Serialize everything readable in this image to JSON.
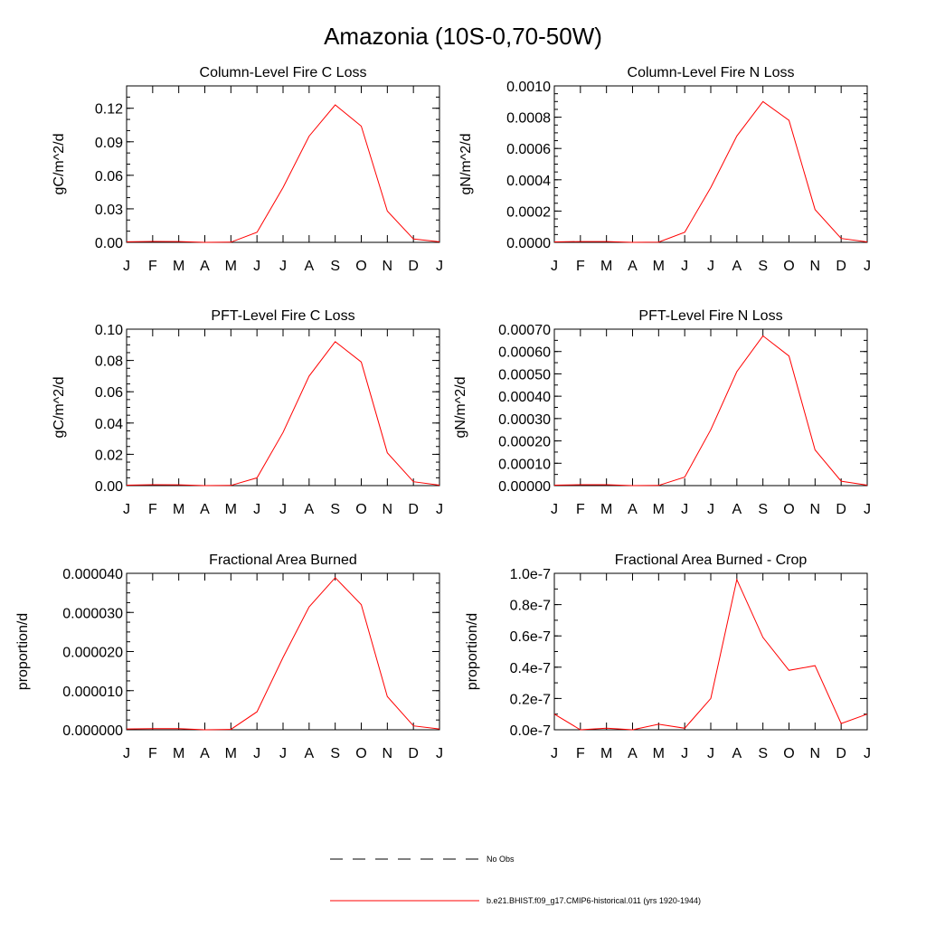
{
  "title": "Amazonia (10S-0,70-50W)",
  "month_labels": [
    "J",
    "F",
    "M",
    "A",
    "M",
    "J",
    "J",
    "A",
    "S",
    "O",
    "N",
    "D",
    "J"
  ],
  "chart_data": [
    {
      "type": "line",
      "title": "Column-Level Fire C Loss",
      "ylabel": "gC/m^2/d",
      "ylim": [
        0,
        0.14
      ],
      "yticks": [
        0,
        0.03,
        0.06,
        0.09,
        0.12
      ],
      "ytick_labels": [
        "0.00",
        "0.03",
        "0.06",
        "0.09",
        "0.12"
      ],
      "yminor": 0.01,
      "values": [
        0.0005,
        0.0008,
        0.0007,
        0.0,
        0.0002,
        0.009,
        0.049,
        0.095,
        0.123,
        0.104,
        0.028,
        0.003,
        0.0005
      ]
    },
    {
      "type": "line",
      "title": "Column-Level Fire N Loss",
      "ylabel": "gN/m^2/d",
      "ylim": [
        0,
        0.001
      ],
      "yticks": [
        0,
        0.0002,
        0.0004,
        0.0006,
        0.0008,
        0.001
      ],
      "ytick_labels": [
        "0.0000",
        "0.0002",
        "0.0004",
        "0.0006",
        "0.0008",
        "0.0010"
      ],
      "yminor": 5e-05,
      "values": [
        3e-06,
        5e-06,
        5e-06,
        0.0,
        2e-06,
        6.5e-05,
        0.00035,
        0.00068,
        0.0009,
        0.00078,
        0.00021,
        2.5e-05,
        3e-06
      ]
    },
    {
      "type": "line",
      "title": "PFT-Level Fire C Loss",
      "ylabel": "gC/m^2/d",
      "ylim": [
        0,
        0.1
      ],
      "yticks": [
        0,
        0.02,
        0.04,
        0.06,
        0.08,
        0.1
      ],
      "ytick_labels": [
        "0.00",
        "0.02",
        "0.04",
        "0.06",
        "0.08",
        "0.10"
      ],
      "yminor": 0.005,
      "values": [
        0.0003,
        0.0006,
        0.0005,
        0.0,
        0.0001,
        0.005,
        0.034,
        0.07,
        0.092,
        0.079,
        0.021,
        0.0025,
        0.0003
      ]
    },
    {
      "type": "line",
      "title": "PFT-Level Fire N Loss",
      "ylabel": "gN/m^2/d",
      "ylim": [
        0,
        0.0007
      ],
      "yticks": [
        0,
        0.0001,
        0.0002,
        0.0003,
        0.0004,
        0.0005,
        0.0006,
        0.0007
      ],
      "ytick_labels": [
        "0.00000",
        "0.00010",
        "0.00020",
        "0.00030",
        "0.00040",
        "0.00050",
        "0.00060",
        "0.00070"
      ],
      "yminor": 5e-05,
      "values": [
        2e-06,
        4e-06,
        4e-06,
        0.0,
        1e-06,
        3.8e-05,
        0.00025,
        0.00051,
        0.00067,
        0.00058,
        0.00016,
        2e-05,
        2e-06
      ]
    },
    {
      "type": "line",
      "title": "Fractional Area Burned",
      "ylabel": "proportion/d",
      "ylim": [
        0,
        4e-05
      ],
      "yticks": [
        0,
        1e-05,
        2e-05,
        3e-05,
        4e-05
      ],
      "ytick_labels": [
        "0.000000",
        "0.000010",
        "0.000020",
        "0.000030",
        "0.000040"
      ],
      "yminor": 2.5e-06,
      "values": [
        2e-07,
        3e-07,
        3e-07,
        0.0,
        1e-07,
        4.6e-06,
        1.85e-05,
        3.14e-05,
        3.89e-05,
        3.2e-05,
        8.5e-06,
        1e-06,
        2e-07
      ]
    },
    {
      "type": "line",
      "title": "Fractional Area Burned - Crop",
      "ylabel": "proportion/d",
      "ylim": [
        0,
        1e-07
      ],
      "yticks": [
        0,
        2e-08,
        4e-08,
        6e-08,
        8e-08,
        1e-07
      ],
      "ytick_labels": [
        "0.0e-7",
        "0.2e-7",
        "0.4e-7",
        "0.6e-7",
        "0.8e-7",
        "1.0e-7"
      ],
      "yminor": 1e-08,
      "values": [
        1e-08,
        0.0,
        1e-09,
        0.0,
        3.5e-09,
        1e-09,
        2e-08,
        9.6e-08,
        5.9e-08,
        3.8e-08,
        4.1e-08,
        4e-09,
        1e-08
      ]
    }
  ],
  "legend": [
    {
      "label": "No Obs",
      "style": "dashed",
      "color": "#000000"
    },
    {
      "label": "b.e21.BHIST.f09_g17.CMIP6-historical.011 (yrs 1920-1944)",
      "style": "solid",
      "color": "#ff0000"
    }
  ]
}
